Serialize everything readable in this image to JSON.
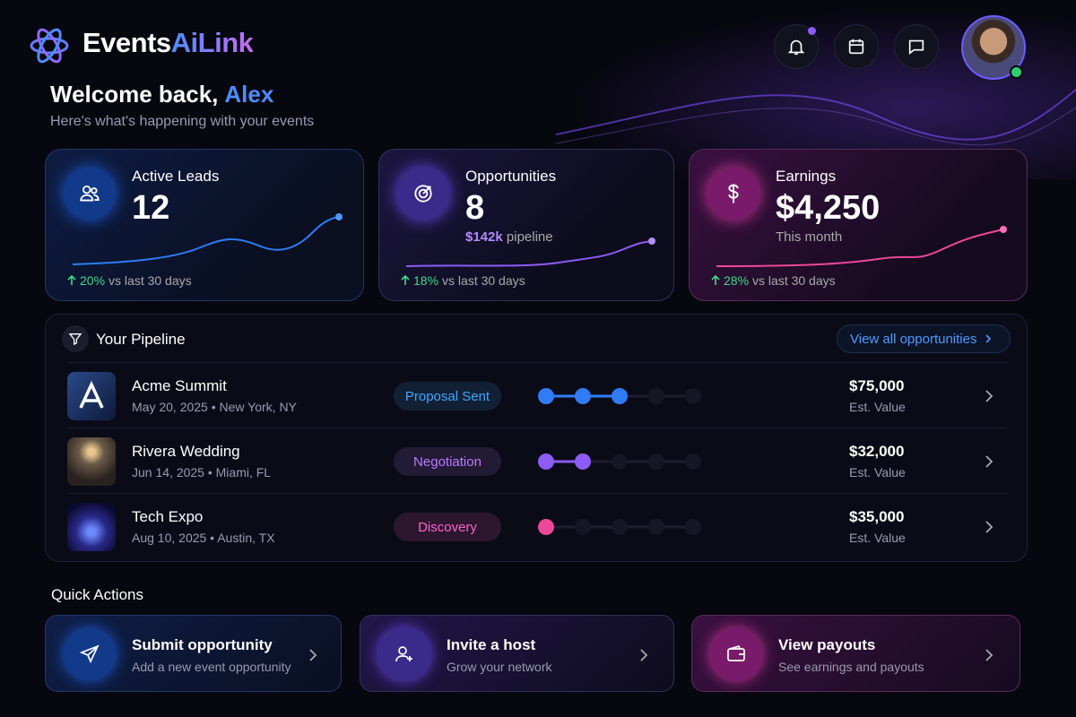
{
  "brand": {
    "name_part1": "Events",
    "name_part2": "AiLink"
  },
  "welcome": {
    "greeting": "Welcome back,",
    "name": "Alex",
    "subtitle": "Here's what's happening with your events"
  },
  "stats": [
    {
      "title": "Active Leads",
      "value": "12",
      "change": "20%",
      "change_label": "vs last 30 days"
    },
    {
      "title": "Opportunities",
      "value": "8",
      "sub_highlight": "$142k",
      "sub": "pipeline",
      "change": "18%",
      "change_label": "vs last 30 days"
    },
    {
      "title": "Earnings",
      "value": "$4,250",
      "sub": "This month",
      "change": "28%",
      "change_label": "vs last 30 days"
    }
  ],
  "pipeline": {
    "title": "Your Pipeline",
    "link": "View all opportunities",
    "stages_total": 5,
    "rows": [
      {
        "name": "Acme Summit",
        "meta": "May 20, 2025 • New York, NY",
        "status": "Proposal Sent",
        "progress": 3,
        "color": "#2f7cf6",
        "amount": "$75,000",
        "amount_label": "Est. Value"
      },
      {
        "name": "Rivera Wedding",
        "meta": "Jun 14, 2025 • Miami, FL",
        "status": "Negotiation",
        "progress": 2,
        "color": "#8b5cf6",
        "amount": "$32,000",
        "amount_label": "Est. Value"
      },
      {
        "name": "Tech Expo",
        "meta": "Aug 10, 2025 • Austin, TX",
        "status": "Discovery",
        "progress": 1,
        "color": "#ec4899",
        "amount": "$35,000",
        "amount_label": "Est. Value"
      }
    ]
  },
  "quick_actions": {
    "title": "Quick Actions",
    "items": [
      {
        "title": "Submit opportunity",
        "subtitle": "Add a new event opportunity"
      },
      {
        "title": "Invite a host",
        "subtitle": "Grow your network"
      },
      {
        "title": "View payouts",
        "subtitle": "See earnings and payouts"
      }
    ]
  }
}
